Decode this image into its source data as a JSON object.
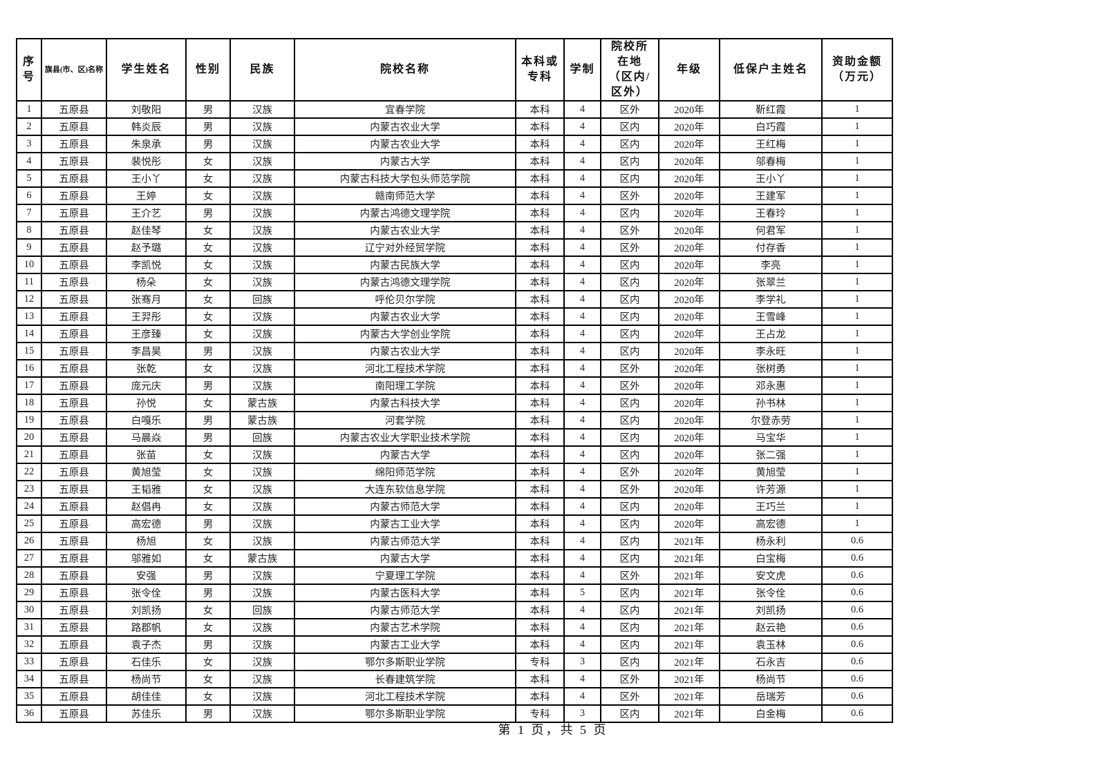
{
  "page": {
    "footer": "第 1 页，共 5 页"
  },
  "table": {
    "columns": [
      {
        "id": "index",
        "label": "序号"
      },
      {
        "id": "county",
        "label": "旗县(市、区)名称"
      },
      {
        "id": "student",
        "label": "学生姓名"
      },
      {
        "id": "gender",
        "label": "性别"
      },
      {
        "id": "ethnic",
        "label": "民族"
      },
      {
        "id": "school",
        "label": "院校名称"
      },
      {
        "id": "degree",
        "label": "本科或专科"
      },
      {
        "id": "years",
        "label": "学制"
      },
      {
        "id": "location",
        "label": "院校所在地（区内/区外）"
      },
      {
        "id": "grade",
        "label": "年级"
      },
      {
        "id": "head",
        "label": "低保户主姓名"
      },
      {
        "id": "amount",
        "label": "资助金额（万元）"
      }
    ],
    "rows": [
      [
        "1",
        "五原县",
        "刘敬阳",
        "男",
        "汉族",
        "宜春学院",
        "本科",
        "4",
        "区外",
        "2020年",
        "靳红霞",
        "1"
      ],
      [
        "2",
        "五原县",
        "韩炎辰",
        "男",
        "汉族",
        "内蒙古农业大学",
        "本科",
        "4",
        "区内",
        "2020年",
        "白巧霞",
        "1"
      ],
      [
        "3",
        "五原县",
        "朱泉承",
        "男",
        "汉族",
        "内蒙古农业大学",
        "本科",
        "4",
        "区内",
        "2020年",
        "王红梅",
        "1"
      ],
      [
        "4",
        "五原县",
        "裴悦彤",
        "女",
        "汉族",
        "内蒙古大学",
        "本科",
        "4",
        "区内",
        "2020年",
        "邬春梅",
        "1"
      ],
      [
        "5",
        "五原县",
        "王小丫",
        "女",
        "汉族",
        "内蒙古科技大学包头师范学院",
        "本科",
        "4",
        "区内",
        "2020年",
        "王小丫",
        "1"
      ],
      [
        "6",
        "五原县",
        "王婷",
        "女",
        "汉族",
        "赣南师范大学",
        "本科",
        "4",
        "区外",
        "2020年",
        "王建军",
        "1"
      ],
      [
        "7",
        "五原县",
        "王介艺",
        "男",
        "汉族",
        "内蒙古鸿德文理学院",
        "本科",
        "4",
        "区内",
        "2020年",
        "王春玲",
        "1"
      ],
      [
        "8",
        "五原县",
        "赵佳琴",
        "女",
        "汉族",
        "内蒙古农业大学",
        "本科",
        "4",
        "区外",
        "2020年",
        "何君军",
        "1"
      ],
      [
        "9",
        "五原县",
        "赵予璐",
        "女",
        "汉族",
        "辽宁对外经贸学院",
        "本科",
        "4",
        "区外",
        "2020年",
        "付存香",
        "1"
      ],
      [
        "10",
        "五原县",
        "李凯悦",
        "女",
        "汉族",
        "内蒙古民族大学",
        "本科",
        "4",
        "区内",
        "2020年",
        "李亮",
        "1"
      ],
      [
        "11",
        "五原县",
        "杨朵",
        "女",
        "汉族",
        "内蒙古鸿德文理学院",
        "本科",
        "4",
        "区内",
        "2020年",
        "张翠兰",
        "1"
      ],
      [
        "12",
        "五原县",
        "张骞月",
        "女",
        "回族",
        "呼伦贝尔学院",
        "本科",
        "4",
        "区内",
        "2020年",
        "李学礼",
        "1"
      ],
      [
        "13",
        "五原县",
        "王羿彤",
        "女",
        "汉族",
        "内蒙古农业大学",
        "本科",
        "4",
        "区内",
        "2020年",
        "王雪峰",
        "1"
      ],
      [
        "14",
        "五原县",
        "王彦臻",
        "女",
        "汉族",
        "内蒙古大学创业学院",
        "本科",
        "4",
        "区内",
        "2020年",
        "王占龙",
        "1"
      ],
      [
        "15",
        "五原县",
        "李昌昊",
        "男",
        "汉族",
        "内蒙古农业大学",
        "本科",
        "4",
        "区内",
        "2020年",
        "李永旺",
        "1"
      ],
      [
        "16",
        "五原县",
        "张乾",
        "女",
        "汉族",
        "河北工程技术学院",
        "本科",
        "4",
        "区外",
        "2020年",
        "张树勇",
        "1"
      ],
      [
        "17",
        "五原县",
        "庞元庆",
        "男",
        "汉族",
        "南阳理工学院",
        "本科",
        "4",
        "区外",
        "2020年",
        "邓永惠",
        "1"
      ],
      [
        "18",
        "五原县",
        "孙悦",
        "女",
        "蒙古族",
        "内蒙古科技大学",
        "本科",
        "4",
        "区内",
        "2020年",
        "孙书林",
        "1"
      ],
      [
        "19",
        "五原县",
        "白嘎乐",
        "男",
        "蒙古族",
        "河套学院",
        "本科",
        "4",
        "区内",
        "2020年",
        "尔登赤劳",
        "1"
      ],
      [
        "20",
        "五原县",
        "马晨焱",
        "男",
        "回族",
        "内蒙古农业大学职业技术学院",
        "本科",
        "4",
        "区内",
        "2020年",
        "马宝华",
        "1"
      ],
      [
        "21",
        "五原县",
        "张苗",
        "女",
        "汉族",
        "内蒙古大学",
        "本科",
        "4",
        "区内",
        "2020年",
        "张二强",
        "1"
      ],
      [
        "22",
        "五原县",
        "黄旭莹",
        "女",
        "汉族",
        "绵阳师范学院",
        "本科",
        "4",
        "区外",
        "2020年",
        "黄旭莹",
        "1"
      ],
      [
        "23",
        "五原县",
        "王韬雅",
        "女",
        "汉族",
        "大连东软信息学院",
        "本科",
        "4",
        "区外",
        "2020年",
        "许芳源",
        "1"
      ],
      [
        "24",
        "五原县",
        "赵倡冉",
        "女",
        "汉族",
        "内蒙古师范大学",
        "本科",
        "4",
        "区内",
        "2020年",
        "王巧兰",
        "1"
      ],
      [
        "25",
        "五原县",
        "高宏德",
        "男",
        "汉族",
        "内蒙古工业大学",
        "本科",
        "4",
        "区内",
        "2020年",
        "高宏德",
        "1"
      ],
      [
        "26",
        "五原县",
        "杨旭",
        "女",
        "汉族",
        "内蒙古师范大学",
        "本科",
        "4",
        "区内",
        "2021年",
        "杨永利",
        "0.6"
      ],
      [
        "27",
        "五原县",
        "邬雅如",
        "女",
        "蒙古族",
        "内蒙古大学",
        "本科",
        "4",
        "区内",
        "2021年",
        "白宝梅",
        "0.6"
      ],
      [
        "28",
        "五原县",
        "安强",
        "男",
        "汉族",
        "宁夏理工学院",
        "本科",
        "4",
        "区外",
        "2021年",
        "安文虎",
        "0.6"
      ],
      [
        "29",
        "五原县",
        "张令佺",
        "男",
        "汉族",
        "内蒙古医科大学",
        "本科",
        "5",
        "区内",
        "2021年",
        "张令佺",
        "0.6"
      ],
      [
        "30",
        "五原县",
        "刘凯扬",
        "女",
        "回族",
        "内蒙古师范大学",
        "本科",
        "4",
        "区内",
        "2021年",
        "刘凯扬",
        "0.6"
      ],
      [
        "31",
        "五原县",
        "路郡帆",
        "女",
        "汉族",
        "内蒙古艺术学院",
        "本科",
        "4",
        "区内",
        "2021年",
        "赵云艳",
        "0.6"
      ],
      [
        "32",
        "五原县",
        "袁子杰",
        "男",
        "汉族",
        "内蒙古工业大学",
        "本科",
        "4",
        "区内",
        "2021年",
        "袁玉林",
        "0.6"
      ],
      [
        "33",
        "五原县",
        "石佳乐",
        "女",
        "汉族",
        "鄂尔多斯职业学院",
        "专科",
        "3",
        "区内",
        "2021年",
        "石永吉",
        "0.6"
      ],
      [
        "34",
        "五原县",
        "杨尚节",
        "女",
        "汉族",
        "长春建筑学院",
        "本科",
        "4",
        "区外",
        "2021年",
        "杨尚节",
        "0.6"
      ],
      [
        "35",
        "五原县",
        "胡佳佳",
        "女",
        "汉族",
        "河北工程技术学院",
        "本科",
        "4",
        "区外",
        "2021年",
        "岳瑞芳",
        "0.6"
      ],
      [
        "36",
        "五原县",
        "苏佳乐",
        "男",
        "汉族",
        "鄂尔多斯职业学院",
        "专科",
        "3",
        "区内",
        "2021年",
        "白金梅",
        "0.6"
      ]
    ]
  }
}
